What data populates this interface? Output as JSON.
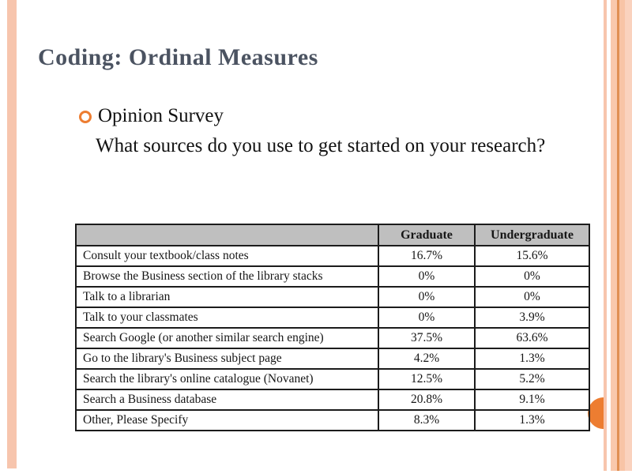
{
  "slide": {
    "title": "Coding: Ordinal Measures",
    "bullet": "Opinion Survey",
    "question": "What sources do you use to get started on your research?"
  },
  "table": {
    "headers": [
      "",
      "Graduate",
      "Undergraduate"
    ],
    "rows": [
      [
        "Consult your textbook/class notes",
        "16.7%",
        "15.6%"
      ],
      [
        "Browse the Business section of the library stacks",
        "0%",
        "0%"
      ],
      [
        "Talk to a librarian",
        "0%",
        "0%"
      ],
      [
        "Talk to your classmates",
        "0%",
        "3.9%"
      ],
      [
        "Search Google (or another similar search engine)",
        "37.5%",
        "63.6%"
      ],
      [
        "Go to the library's Business subject page",
        "4.2%",
        "1.3%"
      ],
      [
        "Search the library's online catalogue (Novanet)",
        "12.5%",
        "5.2%"
      ],
      [
        "Search a Business database",
        "20.8%",
        "9.1%"
      ],
      [
        "Other, Please Specify",
        "8.3%",
        "1.3%"
      ]
    ]
  },
  "theme": {
    "accent_orange": "#ED7D31",
    "stripe_peach": "#F7C5AD",
    "stripe_dark_line": "#E08F53",
    "title_color": "#4B5361",
    "header_gray": "#BFBFBF",
    "table_border": "#1C1C1C"
  }
}
